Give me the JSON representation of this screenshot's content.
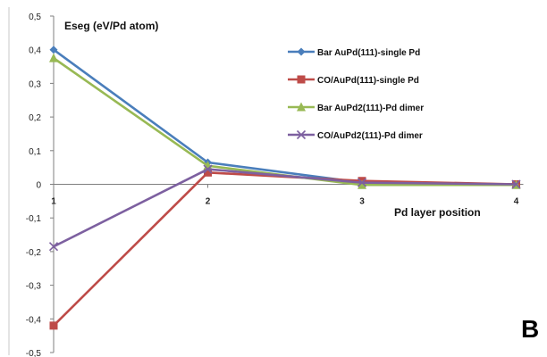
{
  "chart_data": {
    "type": "line",
    "ylabel": "Eseg (eV/Pd atom)",
    "xlabel": "Pd layer position",
    "x": [
      1,
      2,
      3,
      4
    ],
    "x_tick_labels": [
      "1",
      "2",
      "3",
      "4"
    ],
    "ylim": [
      -0.5,
      0.5
    ],
    "y_tick_labels": [
      "0,5",
      "0,4",
      "0,3",
      "0,2",
      "0,1",
      "0",
      "-0,1",
      "-0,2",
      "-0,3",
      "-0,4",
      "-0,5"
    ],
    "y_ticks": [
      0.5,
      0.4,
      0.3,
      0.2,
      0.1,
      0,
      -0.1,
      -0.2,
      -0.3,
      -0.4,
      -0.5
    ],
    "grid": false,
    "legend_position": "top-right",
    "series": [
      {
        "name": "Bar AuPd(111)-single Pd",
        "values": [
          0.4,
          0.065,
          0.005,
          0.0
        ],
        "color": "#4a7ebb",
        "marker": "diamond"
      },
      {
        "name": "CO/AuPd(111)-single Pd",
        "values": [
          -0.42,
          0.035,
          0.01,
          0.0
        ],
        "color": "#be4b48",
        "marker": "square"
      },
      {
        "name": "Bar AuPd2(111)-Pd dimer",
        "values": [
          0.375,
          0.055,
          -0.002,
          -0.002
        ],
        "color": "#98b954",
        "marker": "triangle"
      },
      {
        "name": "CO/AuPd2(111)-Pd dimer",
        "values": [
          -0.185,
          0.045,
          0.005,
          0.0
        ],
        "color": "#7d60a0",
        "marker": "x"
      }
    ]
  },
  "panel_label": "B"
}
